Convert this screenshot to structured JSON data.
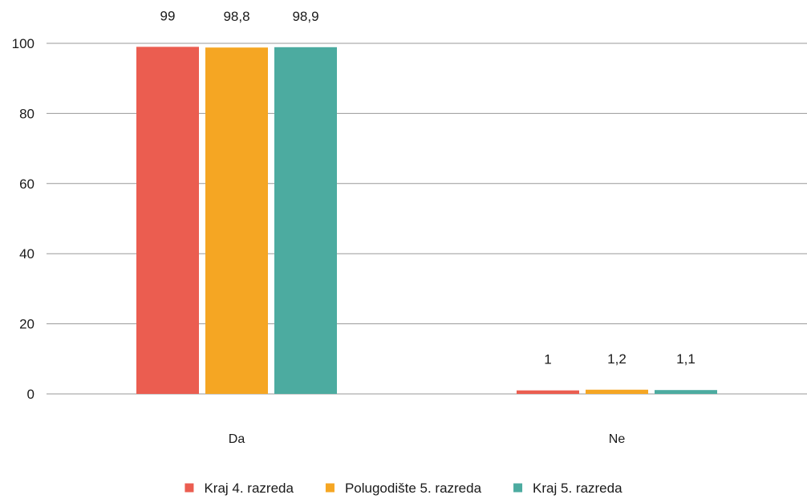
{
  "chart_data": {
    "type": "bar",
    "categories": [
      "Da",
      "Ne"
    ],
    "series": [
      {
        "name": "Kraj 4. razreda",
        "values": [
          99,
          1
        ],
        "labels": [
          "99",
          "1"
        ],
        "color": "#eb5d50"
      },
      {
        "name": "Polugodište 5. razreda",
        "values": [
          98.8,
          1.2
        ],
        "labels": [
          "98,8",
          "1,2"
        ],
        "color": "#f5a623"
      },
      {
        "name": "Kraj 5. razreda",
        "values": [
          98.9,
          1.1
        ],
        "labels": [
          "98,9",
          "1,1"
        ],
        "color": "#4caba0"
      }
    ],
    "ylim": [
      0,
      100
    ],
    "yticks": [
      0,
      20,
      40,
      60,
      80,
      100
    ],
    "grid": true,
    "legend": "bottom",
    "title": "",
    "xlabel": "",
    "ylabel": ""
  }
}
